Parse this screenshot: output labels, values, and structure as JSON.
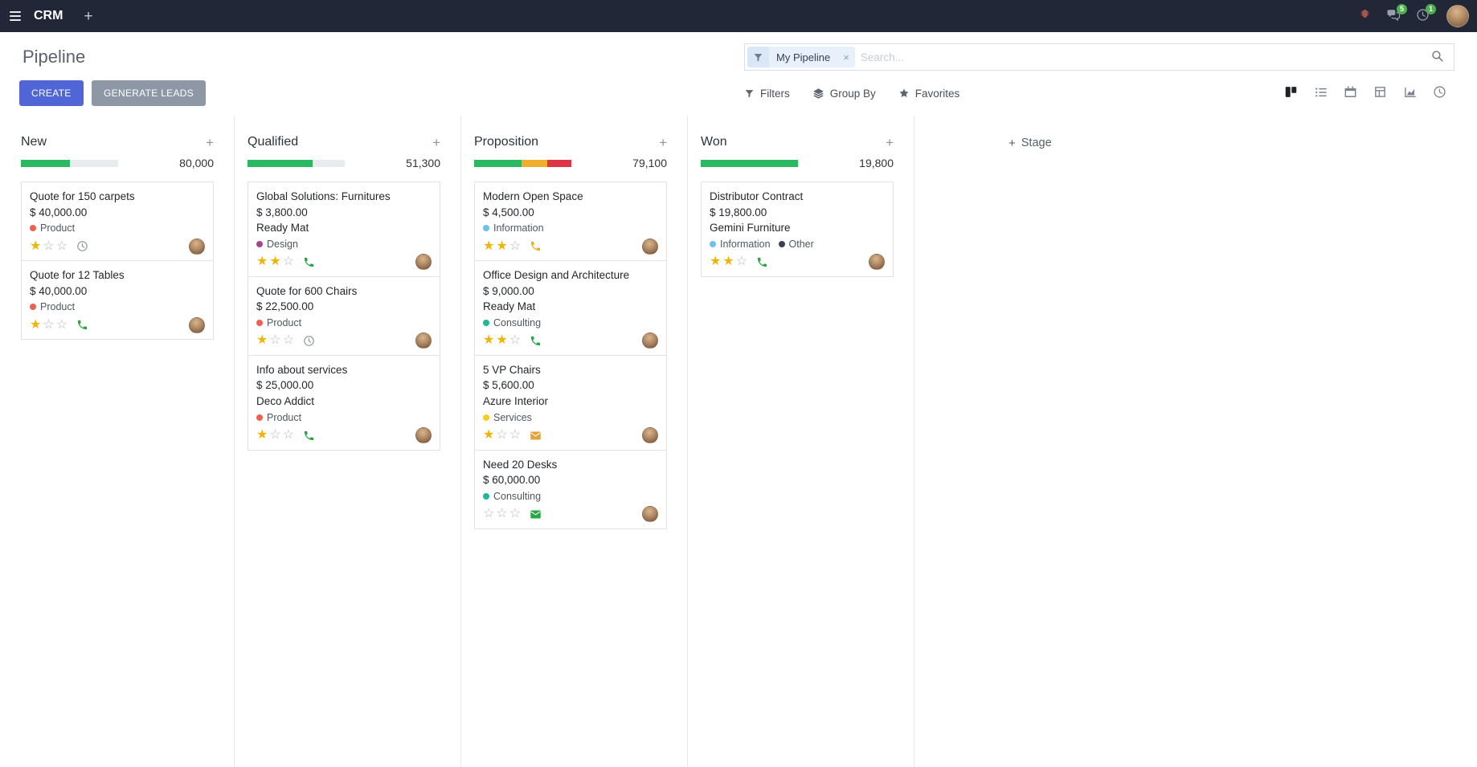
{
  "palette": {
    "topbar_bg": "#212736",
    "create_button": "#5166d6",
    "generate_leads_button": "#8d97a5",
    "badge": "#4caf50"
  },
  "icons": {
    "plus": "+",
    "facet_remove": "×",
    "star_filled": "★",
    "star_empty": "☆"
  },
  "topbar": {
    "app_name": "CRM",
    "messages_badge": "5",
    "activities_badge": "1"
  },
  "control_panel": {
    "title": "Pipeline",
    "create_label": "CREATE",
    "generate_leads_label": "GENERATE LEADS",
    "search": {
      "facet_label": "My Pipeline",
      "placeholder": "Search..."
    },
    "filters_label": "Filters",
    "group_by_label": "Group By",
    "favorites_label": "Favorites"
  },
  "board": {
    "add_stage_label": "Stage",
    "columns": [
      {
        "title": "New",
        "total": "80,000",
        "progress": [
          {
            "color": "#2ab860",
            "pct": 50
          }
        ],
        "cards": [
          {
            "title": "Quote for 150 carpets",
            "amount": "$ 40,000.00",
            "partner": "",
            "tags": [
              {
                "label": "Product",
                "color": "#f06050"
              }
            ],
            "stars": 1,
            "activity": {
              "icon": "clock-icon",
              "color": "#8a9199"
            }
          },
          {
            "title": "Quote for 12 Tables",
            "amount": "$ 40,000.00",
            "partner": "",
            "tags": [
              {
                "label": "Product",
                "color": "#f06050"
              }
            ],
            "stars": 1,
            "activity": {
              "icon": "phone-icon",
              "color": "#28a745"
            }
          }
        ]
      },
      {
        "title": "Qualified",
        "total": "51,300",
        "progress": [
          {
            "color": "#2ab860",
            "pct": 67
          }
        ],
        "cards": [
          {
            "title": "Global Solutions: Furnitures",
            "amount": "$ 3,800.00",
            "partner": "Ready Mat",
            "tags": [
              {
                "label": "Design",
                "color": "#a3478a"
              }
            ],
            "stars": 2,
            "activity": {
              "icon": "phone-icon",
              "color": "#28a745"
            }
          },
          {
            "title": "Quote for 600 Chairs",
            "amount": "$ 22,500.00",
            "partner": "",
            "tags": [
              {
                "label": "Product",
                "color": "#f06050"
              }
            ],
            "stars": 1,
            "activity": {
              "icon": "clock-icon",
              "color": "#8a9199"
            }
          },
          {
            "title": "Info about services",
            "amount": "$ 25,000.00",
            "partner": "Deco Addict",
            "tags": [
              {
                "label": "Product",
                "color": "#f06050"
              }
            ],
            "stars": 1,
            "activity": {
              "icon": "phone-icon",
              "color": "#28a745"
            }
          }
        ]
      },
      {
        "title": "Proposition",
        "total": "79,100",
        "progress": [
          {
            "color": "#2ab860",
            "pct": 49
          },
          {
            "color": "#f0ad2e",
            "pct": 26
          },
          {
            "color": "#dc3545",
            "pct": 25
          }
        ],
        "cards": [
          {
            "title": "Modern Open Space",
            "amount": "$ 4,500.00",
            "partner": "",
            "tags": [
              {
                "label": "Information",
                "color": "#6cc1ed"
              }
            ],
            "stars": 2,
            "activity": {
              "icon": "phone-icon",
              "color": "#edb112"
            }
          },
          {
            "title": "Office Design and Architecture",
            "amount": "$ 9,000.00",
            "partner": "Ready Mat",
            "tags": [
              {
                "label": "Consulting",
                "color": "#21b799"
              }
            ],
            "stars": 2,
            "activity": {
              "icon": "phone-icon",
              "color": "#28a745"
            }
          },
          {
            "title": "5 VP Chairs",
            "amount": "$ 5,600.00",
            "partner": "Azure Interior",
            "tags": [
              {
                "label": "Services",
                "color": "#f7cd1f"
              }
            ],
            "stars": 1,
            "activity": {
              "icon": "envelope-icon",
              "color": "#e2a33d"
            }
          },
          {
            "title": "Need 20 Desks",
            "amount": "$ 60,000.00",
            "partner": "",
            "tags": [
              {
                "label": "Consulting",
                "color": "#21b799"
              }
            ],
            "stars": 0,
            "activity": {
              "icon": "envelope-icon",
              "color": "#28a745"
            }
          }
        ]
      },
      {
        "title": "Won",
        "total": "19,800",
        "progress": [
          {
            "color": "#2ab860",
            "pct": 100
          }
        ],
        "cards": [
          {
            "title": "Distributor Contract",
            "amount": "$ 19,800.00",
            "partner": "Gemini Furniture",
            "tags": [
              {
                "label": "Information",
                "color": "#6cc1ed"
              },
              {
                "label": "Other",
                "color": "#374151"
              }
            ],
            "stars": 2,
            "activity": {
              "icon": "phone-icon",
              "color": "#28a745"
            }
          }
        ]
      }
    ]
  }
}
